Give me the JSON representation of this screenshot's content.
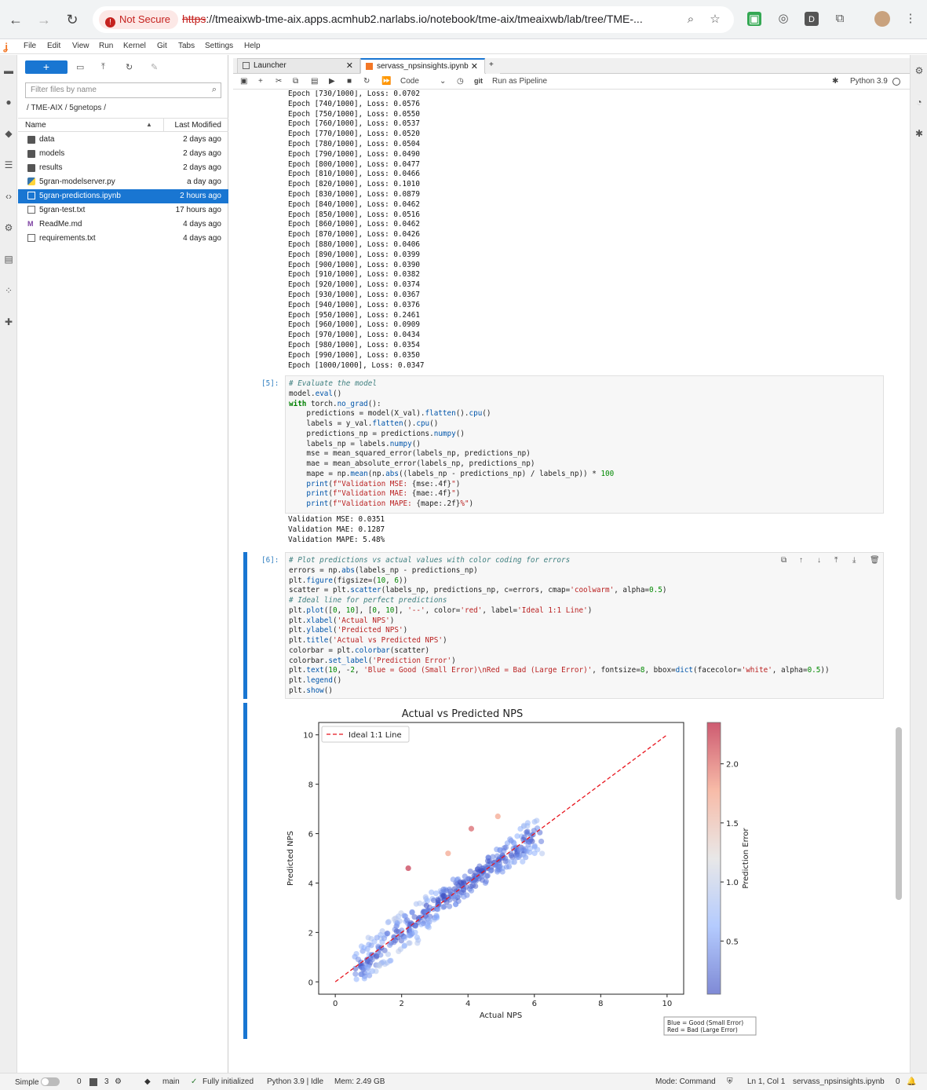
{
  "browser": {
    "security_label": "Not Secure",
    "url_scheme": "https",
    "url_rest": "://tmeaixwb-tme-aix.apps.acmhub2.narlabs.io/notebook/tme-aix/tmeaixwb/lab/tree/TME-..."
  },
  "menu": [
    "File",
    "Edit",
    "View",
    "Run",
    "Kernel",
    "Git",
    "Tabs",
    "Settings",
    "Help"
  ],
  "filebrowser": {
    "new_label": "+",
    "filter_placeholder": "Filter files by name",
    "breadcrumb": "/ TME-AIX / 5gnetops /",
    "col_name": "Name",
    "col_modified": "Last Modified",
    "files": [
      {
        "name": "data",
        "modified": "2 days ago",
        "type": "folder"
      },
      {
        "name": "models",
        "modified": "2 days ago",
        "type": "folder"
      },
      {
        "name": "results",
        "modified": "2 days ago",
        "type": "folder"
      },
      {
        "name": "5gran-modelserver.py",
        "modified": "a day ago",
        "type": "python"
      },
      {
        "name": "5gran-predictions.ipynb",
        "modified": "2 hours ago",
        "type": "notebook",
        "selected": true
      },
      {
        "name": "5gran-test.txt",
        "modified": "17 hours ago",
        "type": "text"
      },
      {
        "name": "ReadMe.md",
        "modified": "4 days ago",
        "type": "markdown"
      },
      {
        "name": "requirements.txt",
        "modified": "4 days ago",
        "type": "text"
      }
    ]
  },
  "tabs": [
    {
      "label": "Launcher",
      "active": false
    },
    {
      "label": "servass_npsinsights.ipynb",
      "active": true
    }
  ],
  "toolbar": {
    "cell_type": "Code",
    "git_label": "git",
    "pipeline_label": "Run as Pipeline",
    "kernel": "Python 3.9"
  },
  "epoch_output": "Epoch [730/1000], Loss: 0.0702\nEpoch [740/1000], Loss: 0.0576\nEpoch [750/1000], Loss: 0.0550\nEpoch [760/1000], Loss: 0.0537\nEpoch [770/1000], Loss: 0.0520\nEpoch [780/1000], Loss: 0.0504\nEpoch [790/1000], Loss: 0.0490\nEpoch [800/1000], Loss: 0.0477\nEpoch [810/1000], Loss: 0.0466\nEpoch [820/1000], Loss: 0.1010\nEpoch [830/1000], Loss: 0.0879\nEpoch [840/1000], Loss: 0.0462\nEpoch [850/1000], Loss: 0.0516\nEpoch [860/1000], Loss: 0.0462\nEpoch [870/1000], Loss: 0.0426\nEpoch [880/1000], Loss: 0.0406\nEpoch [890/1000], Loss: 0.0399\nEpoch [900/1000], Loss: 0.0390\nEpoch [910/1000], Loss: 0.0382\nEpoch [920/1000], Loss: 0.0374\nEpoch [930/1000], Loss: 0.0367\nEpoch [940/1000], Loss: 0.0376\nEpoch [950/1000], Loss: 0.2461\nEpoch [960/1000], Loss: 0.0909\nEpoch [970/1000], Loss: 0.0434\nEpoch [980/1000], Loss: 0.0354\nEpoch [990/1000], Loss: 0.0350\nEpoch [1000/1000], Loss: 0.0347",
  "cell5": {
    "prompt": "[5]:",
    "output": "Validation MSE: 0.0351\nValidation MAE: 0.1287\nValidation MAPE: 5.48%"
  },
  "cell6": {
    "prompt": "[6]:"
  },
  "chart_data": {
    "type": "scatter",
    "title": "Actual vs Predicted NPS",
    "xlabel": "Actual NPS",
    "ylabel": "Predicted NPS",
    "xlim": [
      -0.5,
      10.5
    ],
    "ylim": [
      -0.5,
      10.5
    ],
    "xticks": [
      "0",
      "2",
      "4",
      "6",
      "8",
      "10"
    ],
    "yticks": [
      "0",
      "2",
      "4",
      "6",
      "8",
      "10"
    ],
    "colorbar_label": "Prediction Error",
    "colorbar_ticks": [
      "0.5",
      "1.0",
      "1.5",
      "2.0"
    ],
    "colorbar_range": [
      0.05,
      2.35
    ],
    "colormap": "coolwarm",
    "legend_entry": "Ideal 1:1 Line",
    "legend_location": "upper-left",
    "ideal_line": {
      "x": [
        0,
        10
      ],
      "y": [
        0,
        10
      ],
      "color": "#e8141d",
      "style": "dashed"
    },
    "note_line1": "Blue = Good (Small Error)",
    "note_line2": "Red = Bad (Large Error)",
    "series": [
      {
        "x": [
          0.8,
          1.0,
          1.2,
          1.5,
          1.8,
          2.0,
          2.3,
          2.5,
          2.8,
          3.0,
          3.3,
          3.5,
          3.8,
          4.0,
          4.3,
          4.5,
          4.8,
          5.0,
          5.3,
          5.5,
          5.8,
          6.0
        ],
        "y": [
          0.6,
          0.9,
          1.1,
          1.4,
          1.8,
          2.0,
          2.3,
          2.5,
          2.8,
          3.1,
          3.3,
          3.5,
          3.8,
          4.0,
          4.3,
          4.5,
          4.8,
          5.0,
          5.2,
          5.4,
          5.7,
          5.9
        ]
      }
    ],
    "outliers": [
      {
        "x": 2.2,
        "y": 4.6,
        "error": 2.3
      },
      {
        "x": 4.9,
        "y": 6.7,
        "error": 1.8
      },
      {
        "x": 4.1,
        "y": 6.2,
        "error": 2.1
      },
      {
        "x": 3.4,
        "y": 5.2,
        "error": 1.8
      }
    ]
  },
  "statusbar": {
    "mode_simple": "Simple",
    "terminals": "0",
    "kernels": "3",
    "branch": "main",
    "git_status": "Fully initialized",
    "kernel_status": "Python 3.9 | Idle",
    "memory": "Mem: 2.49 GB",
    "mode": "Mode: Command",
    "cursor": "Ln 1, Col 1",
    "filename": "servass_npsinsights.ipynb",
    "notifications": "0"
  }
}
